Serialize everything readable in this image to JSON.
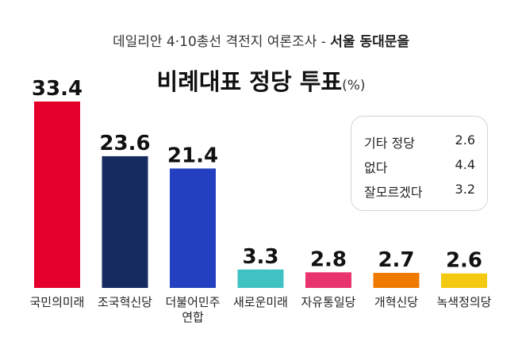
{
  "header": {
    "subtitle_prefix": "데일리안 4·10총선 격전지 여론조사 - ",
    "subtitle_region": "서울 동대문을",
    "title": "비례대표 정당 투표",
    "title_unit": "(%)"
  },
  "chart_data": {
    "type": "bar",
    "title": "비례대표 정당 투표",
    "categories": [
      "국민의미래",
      "조국혁신당",
      "더불어민주\n연합",
      "새로운미래",
      "자유통일당",
      "개혁신당",
      "녹색정의당"
    ],
    "values": [
      33.4,
      23.6,
      21.4,
      3.3,
      2.8,
      2.7,
      2.6
    ],
    "value_labels": [
      "33.4",
      "23.6",
      "21.4",
      "3.3",
      "2.8",
      "2.7",
      "2.6"
    ],
    "colors": [
      "#e4002b",
      "#152b5f",
      "#2340c0",
      "#40c2c2",
      "#e8336c",
      "#ef7a00",
      "#f3c912"
    ],
    "ylim": [
      0,
      35
    ],
    "grid": false,
    "legend": "none"
  },
  "others_box": {
    "items": [
      {
        "label": "기타 정당",
        "value": "2.6"
      },
      {
        "label": "없다",
        "value": "4.4"
      },
      {
        "label": "잘모르겠다",
        "value": "3.2"
      }
    ]
  }
}
